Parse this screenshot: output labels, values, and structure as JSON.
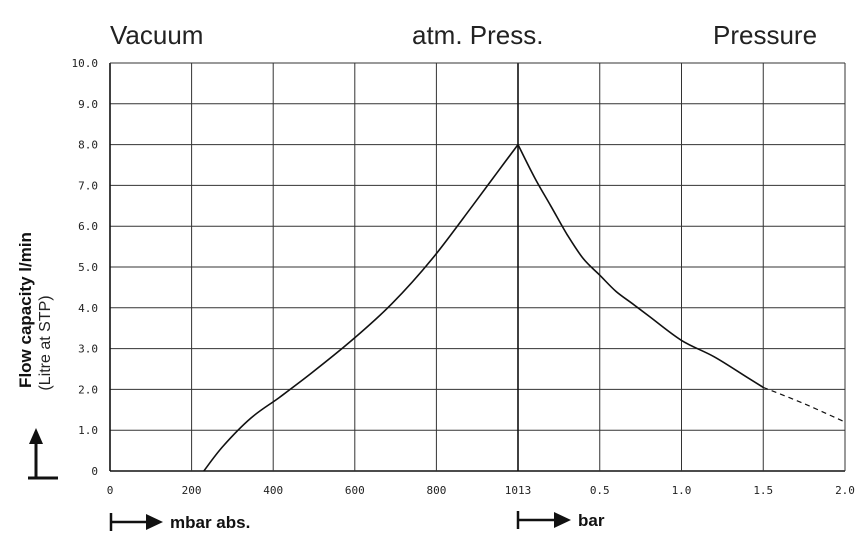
{
  "chart_data": {
    "type": "line",
    "region_labels": [
      "Vacuum",
      "atm. Press.",
      "Pressure"
    ],
    "ylabel": "Flow capacity l/min",
    "ylabel_sub": "(Litre at STP)",
    "ylim": [
      0,
      10
    ],
    "y_ticks": [
      "0",
      "1.0",
      "2.0",
      "3.0",
      "4.0",
      "5.0",
      "6.0",
      "7.0",
      "8.0",
      "9.0",
      "10.0"
    ],
    "grid": true,
    "vacuum_axis": {
      "label": "mbar abs.",
      "range": [
        0,
        1013
      ],
      "ticks": [
        "0",
        "200",
        "400",
        "600",
        "800",
        "1013"
      ]
    },
    "pressure_axis": {
      "label": "bar",
      "range": [
        0,
        2.0
      ],
      "ticks": [
        "0.5",
        "1.0",
        "1.5",
        "2.0"
      ]
    },
    "series": [
      {
        "axis": "vacuum",
        "style": "solid",
        "x": [
          233,
          280,
          350,
          420,
          500,
          600,
          700,
          800,
          900,
          960,
          1013
        ],
        "y": [
          0,
          0.6,
          1.3,
          1.8,
          2.4,
          3.2,
          4.1,
          5.2,
          6.5,
          7.3,
          8.0
        ]
      },
      {
        "axis": "pressure",
        "style": "solid",
        "x": [
          0,
          0.1,
          0.2,
          0.3,
          0.4,
          0.5,
          0.6,
          0.7,
          0.8,
          1.0,
          1.2,
          1.4,
          1.5
        ],
        "y": [
          8.0,
          7.2,
          6.5,
          5.8,
          5.2,
          4.8,
          4.4,
          4.1,
          3.8,
          3.2,
          2.8,
          2.3,
          2.05
        ]
      },
      {
        "axis": "pressure",
        "style": "dashed",
        "x": [
          1.5,
          1.75,
          2.0
        ],
        "y": [
          2.05,
          1.65,
          1.2
        ]
      }
    ]
  }
}
